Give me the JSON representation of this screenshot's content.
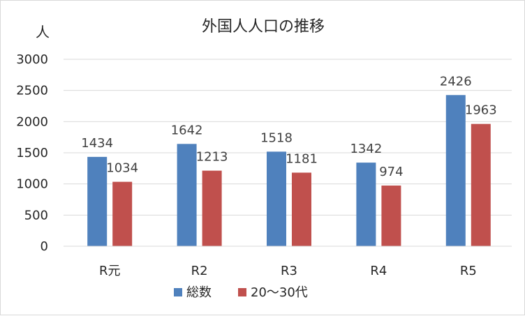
{
  "chart_data": {
    "type": "bar",
    "title": "外国人人口の推移",
    "ylabel": "人",
    "xlabel": "",
    "categories": [
      "R元",
      "R2",
      "R3",
      "R4",
      "R5"
    ],
    "series": [
      {
        "name": "総数",
        "values": [
          1434,
          1642,
          1518,
          1342,
          2426
        ],
        "color": "#4f81bd"
      },
      {
        "name": "20〜30代",
        "values": [
          1034,
          1213,
          1181,
          974,
          1963
        ],
        "color": "#c0504d"
      }
    ],
    "ylim": [
      0,
      3000
    ],
    "yticks": [
      0,
      500,
      1000,
      1500,
      2000,
      2500,
      3000
    ],
    "grid": true,
    "legend": "bottom"
  }
}
